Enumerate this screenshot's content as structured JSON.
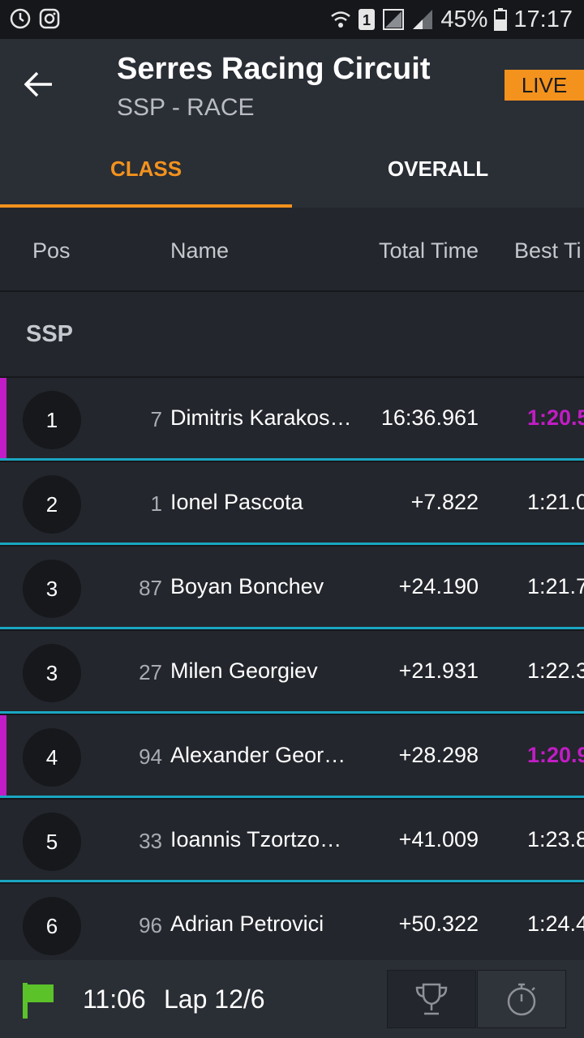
{
  "status_bar": {
    "battery": "45%",
    "time": "17:17",
    "sim_label": "1",
    "icons_left": [
      "sync-icon",
      "instagram-icon"
    ],
    "icons_right": [
      "wifi-icon",
      "sim-icon",
      "signal-icon",
      "signal-icon",
      "battery-icon"
    ]
  },
  "header": {
    "title": "Serres Racing Circuit",
    "subtitle": "SSP - RACE",
    "live_label": "LIVE",
    "back_icon": "arrow-left-icon"
  },
  "tabs": [
    {
      "label": "CLASS",
      "active": true
    },
    {
      "label": "OVERALL",
      "active": false
    }
  ],
  "columns": {
    "pos": "Pos",
    "name": "Name",
    "total": "Total Time",
    "best": "Best Ti"
  },
  "group": {
    "label": "SSP"
  },
  "rows": [
    {
      "pos": "1",
      "num": "7",
      "name": "Dimitris Karakos…",
      "total": "16:36.961",
      "best": "1:20.5",
      "best_purple": true,
      "highlight": true
    },
    {
      "pos": "2",
      "num": "1",
      "name": "Ionel Pascota",
      "total": "+7.822",
      "best": "1:21.0",
      "best_purple": false,
      "highlight": false
    },
    {
      "pos": "3",
      "num": "87",
      "name": "Boyan Bonchev",
      "total": "+24.190",
      "best": "1:21.7",
      "best_purple": false,
      "highlight": false
    },
    {
      "pos": "3",
      "num": "27",
      "name": "Milen Georgiev",
      "total": "+21.931",
      "best": "1:22.3",
      "best_purple": false,
      "highlight": false
    },
    {
      "pos": "4",
      "num": "94",
      "name": "Alexander Georg…",
      "total": "+28.298",
      "best": "1:20.9",
      "best_purple": true,
      "highlight": true
    },
    {
      "pos": "5",
      "num": "33",
      "name": "Ioannis Tzortzop…",
      "total": "+41.009",
      "best": "1:23.8",
      "best_purple": false,
      "highlight": false
    },
    {
      "pos": "6",
      "num": "96",
      "name": "Adrian Petrovici",
      "total": "+50.322",
      "best": "1:24.4",
      "best_purple": false,
      "highlight": false
    }
  ],
  "footer": {
    "flag_icon": "green-flag-icon",
    "race_time": "11:06",
    "lap": "Lap 12/6",
    "buttons": [
      "trophy-icon",
      "stopwatch-icon"
    ]
  },
  "colors": {
    "accent": "#f3921d",
    "highlight": "#c21cc6",
    "separator": "#1aa6c2",
    "flag": "#5bc22a"
  }
}
